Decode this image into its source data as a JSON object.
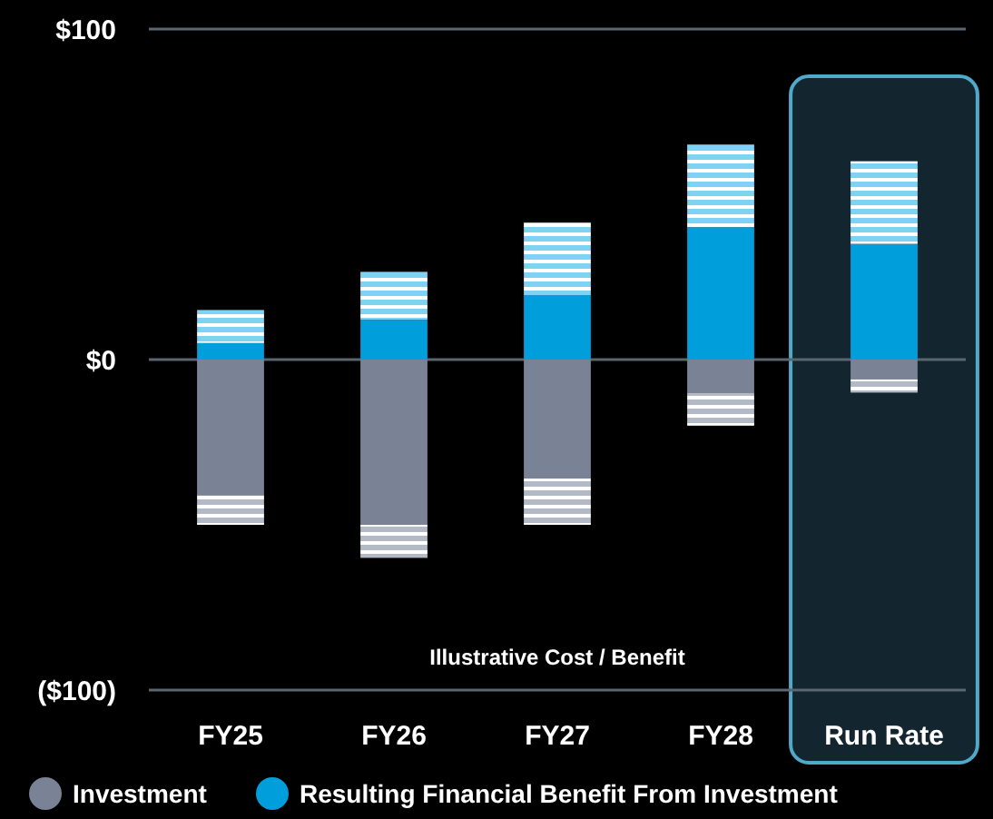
{
  "chart_data": {
    "type": "bar",
    "stacked": true,
    "categories": [
      "FY25",
      "FY26",
      "FY27",
      "FY28",
      "Run Rate"
    ],
    "series": [
      {
        "name": "Investment",
        "color": "#7a8296",
        "values": [
          -41,
          -50,
          -36,
          -10,
          -6
        ]
      },
      {
        "color": "#b4b9c6",
        "values": [
          -9,
          -10,
          -14,
          -10,
          -4
        ]
      },
      {
        "name": "Resulting Financial Benefit From Investment",
        "color": "#009fdb",
        "values": [
          5,
          12,
          19.5,
          40,
          35
        ]
      },
      {
        "color": "#7fd3f2",
        "values": [
          10,
          14.5,
          22,
          25,
          25
        ]
      }
    ],
    "ylim": [
      -100,
      100
    ],
    "yticks": [
      {
        "value": -100,
        "label": "($100)"
      },
      {
        "value": 0,
        "label": "$0"
      },
      {
        "value": 100,
        "label": "$100"
      }
    ],
    "grid": "y",
    "legend": "bottom",
    "annotations": [
      "Illustrative Cost / Benefit"
    ]
  }
}
